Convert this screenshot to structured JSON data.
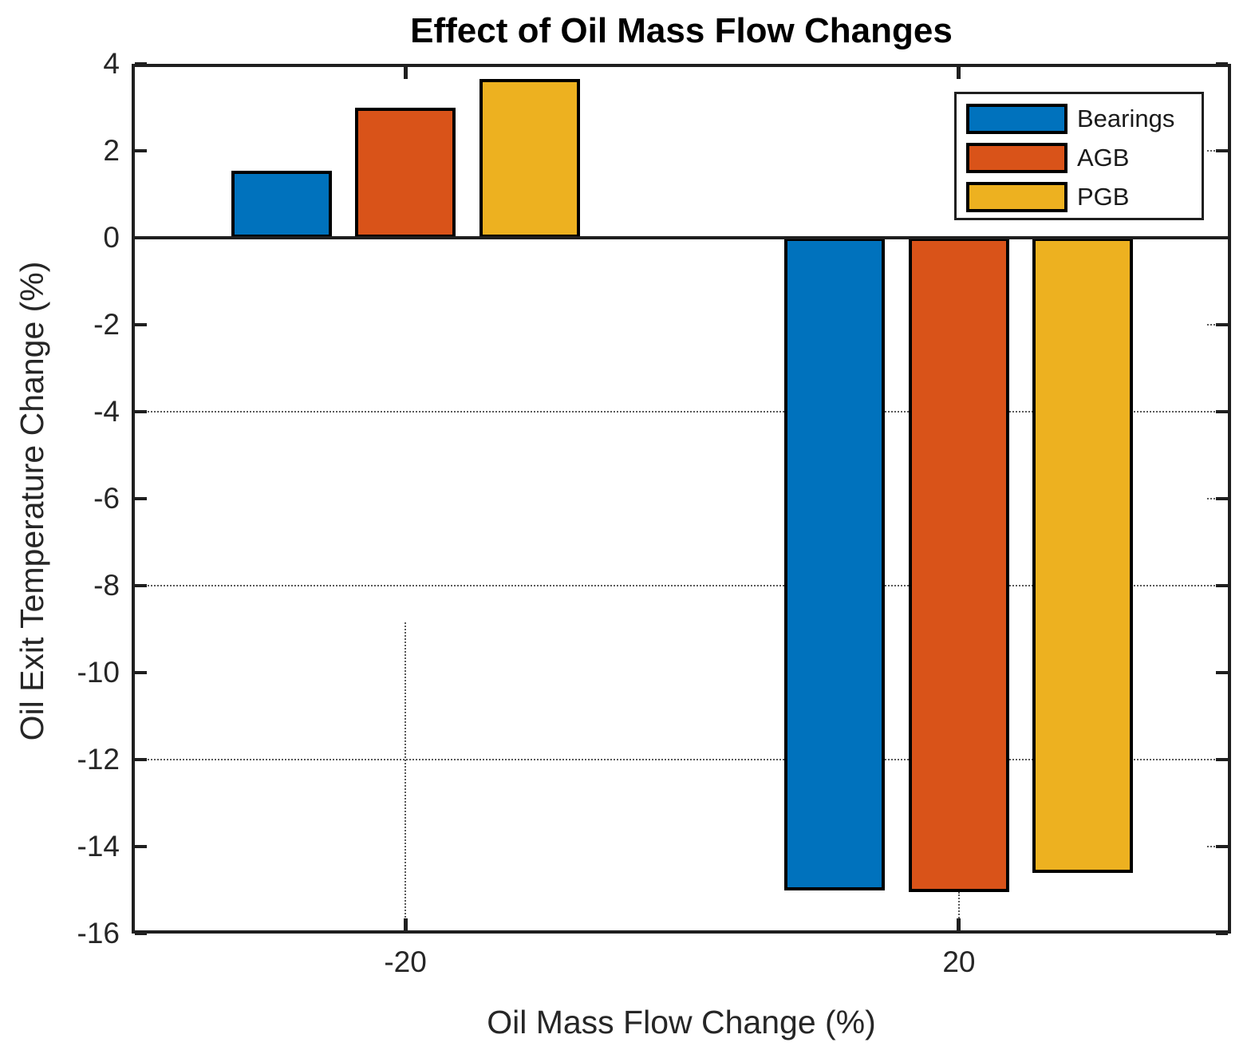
{
  "chart_data": {
    "type": "bar",
    "title": "Effect of Oil Mass Flow Changes",
    "xlabel": "Oil Mass Flow Change (%)",
    "ylabel": "Oil Exit Temperature Change (%)",
    "categories": [
      "-20",
      "20"
    ],
    "series": [
      {
        "name": "Bearings",
        "color": "#0072BD",
        "values": [
          1.55,
          -15.0
        ]
      },
      {
        "name": "AGB",
        "color": "#D95319",
        "values": [
          3.0,
          -15.05
        ]
      },
      {
        "name": "PGB",
        "color": "#EDB120",
        "values": [
          3.65,
          -14.6
        ]
      }
    ],
    "ylim": [
      -16,
      4
    ],
    "yticks": [
      4,
      2,
      0,
      -2,
      -4,
      -6,
      -8,
      -10,
      -12,
      -14,
      -16
    ],
    "baseline": 0,
    "grid": {
      "style": "dotted",
      "color": "#5a5a5a",
      "y_full_lines": [
        -4,
        -8,
        -12
      ],
      "y_right_stubs": [
        2,
        -2,
        -6,
        -14
      ],
      "x_partial_segments": [
        {
          "category": "-20",
          "from": -8.85,
          "to": -16
        },
        {
          "category": "20",
          "from": -15.05,
          "to": -16
        }
      ]
    },
    "legend": {
      "position": "top-right",
      "entries": [
        "Bearings",
        "AGB",
        "PGB"
      ]
    },
    "axis_color": "#1f1f1f",
    "bar_edge_color": "#000000",
    "text_color": "#262626"
  }
}
